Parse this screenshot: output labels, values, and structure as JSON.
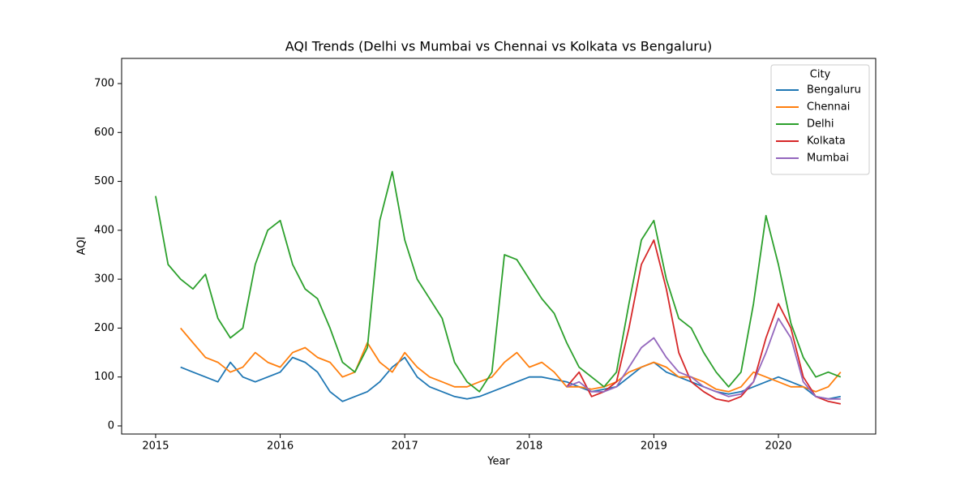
{
  "chart_data": {
    "type": "line",
    "title": "AQI Trends (Delhi vs Mumbai vs Chennai vs Kolkata vs Bengaluru)",
    "x_label": "Year",
    "y_label": "AQI",
    "x": [
      2015.0,
      2015.1,
      2015.2,
      2015.3,
      2015.4,
      2015.5,
      2015.6,
      2015.7,
      2015.8,
      2015.9,
      2016.0,
      2016.1,
      2016.2,
      2016.3,
      2016.4,
      2016.5,
      2016.6,
      2016.7,
      2016.8,
      2016.9,
      2017.0,
      2017.1,
      2017.2,
      2017.3,
      2017.4,
      2017.5,
      2017.6,
      2017.7,
      2017.8,
      2017.9,
      2018.0,
      2018.1,
      2018.2,
      2018.3,
      2018.4,
      2018.5,
      2018.6,
      2018.7,
      2018.8,
      2018.9,
      2019.0,
      2019.1,
      2019.2,
      2019.3,
      2019.4,
      2019.5,
      2019.6,
      2019.7,
      2019.8,
      2019.9,
      2020.0,
      2020.1,
      2020.2,
      2020.3,
      2020.4,
      2020.5
    ],
    "series": [
      {
        "name": "Bengaluru",
        "color": "#1f77b4",
        "values": [
          null,
          null,
          120,
          110,
          100,
          90,
          130,
          100,
          90,
          100,
          110,
          140,
          130,
          110,
          70,
          50,
          60,
          70,
          90,
          120,
          140,
          100,
          80,
          70,
          60,
          55,
          60,
          70,
          80,
          90,
          100,
          100,
          95,
          90,
          80,
          70,
          75,
          80,
          100,
          120,
          130,
          110,
          100,
          90,
          80,
          70,
          65,
          70,
          80,
          90,
          100,
          90,
          80,
          60,
          55,
          60
        ]
      },
      {
        "name": "Chennai",
        "color": "#ff7f0e",
        "values": [
          null,
          null,
          200,
          170,
          140,
          130,
          110,
          120,
          150,
          130,
          120,
          150,
          160,
          140,
          130,
          100,
          110,
          170,
          130,
          110,
          150,
          120,
          100,
          90,
          80,
          80,
          90,
          100,
          130,
          150,
          120,
          130,
          110,
          80,
          80,
          75,
          80,
          90,
          110,
          120,
          130,
          120,
          100,
          100,
          90,
          75,
          70,
          80,
          110,
          100,
          90,
          80,
          80,
          70,
          80,
          110
        ]
      },
      {
        "name": "Delhi",
        "color": "#2ca02c",
        "values": [
          470,
          330,
          300,
          280,
          310,
          220,
          180,
          200,
          330,
          400,
          420,
          330,
          280,
          260,
          200,
          130,
          110,
          160,
          420,
          520,
          380,
          300,
          260,
          220,
          130,
          90,
          70,
          110,
          350,
          340,
          300,
          260,
          230,
          170,
          120,
          100,
          80,
          110,
          250,
          380,
          420,
          300,
          220,
          200,
          150,
          110,
          80,
          110,
          250,
          430,
          330,
          210,
          140,
          100,
          110,
          100
        ]
      },
      {
        "name": "Kolkata",
        "color": "#d62728",
        "values": [
          null,
          null,
          null,
          null,
          null,
          null,
          null,
          null,
          null,
          null,
          null,
          null,
          null,
          null,
          null,
          null,
          null,
          null,
          null,
          null,
          null,
          null,
          null,
          null,
          null,
          null,
          null,
          null,
          null,
          null,
          null,
          null,
          null,
          80,
          110,
          60,
          70,
          90,
          200,
          330,
          380,
          280,
          150,
          90,
          70,
          55,
          50,
          60,
          90,
          180,
          250,
          200,
          100,
          60,
          50,
          45
        ]
      },
      {
        "name": "Mumbai",
        "color": "#9467bd",
        "values": [
          null,
          null,
          null,
          null,
          null,
          null,
          null,
          null,
          null,
          null,
          null,
          null,
          null,
          null,
          null,
          null,
          null,
          null,
          null,
          null,
          null,
          null,
          null,
          null,
          null,
          null,
          null,
          null,
          null,
          null,
          null,
          null,
          null,
          80,
          90,
          70,
          70,
          80,
          120,
          160,
          180,
          140,
          110,
          100,
          80,
          70,
          60,
          65,
          90,
          150,
          220,
          180,
          90,
          60,
          55,
          55
        ]
      }
    ],
    "xlim": [
      2014.727,
      2020.781
    ],
    "xticks": [
      2015,
      2016,
      2017,
      2018,
      2019,
      2020
    ],
    "ylim": [
      -16.6,
      751.4
    ],
    "yticks": [
      0,
      100,
      200,
      300,
      400,
      500,
      600,
      700
    ],
    "legend": "upper right",
    "legend_title": "City"
  }
}
